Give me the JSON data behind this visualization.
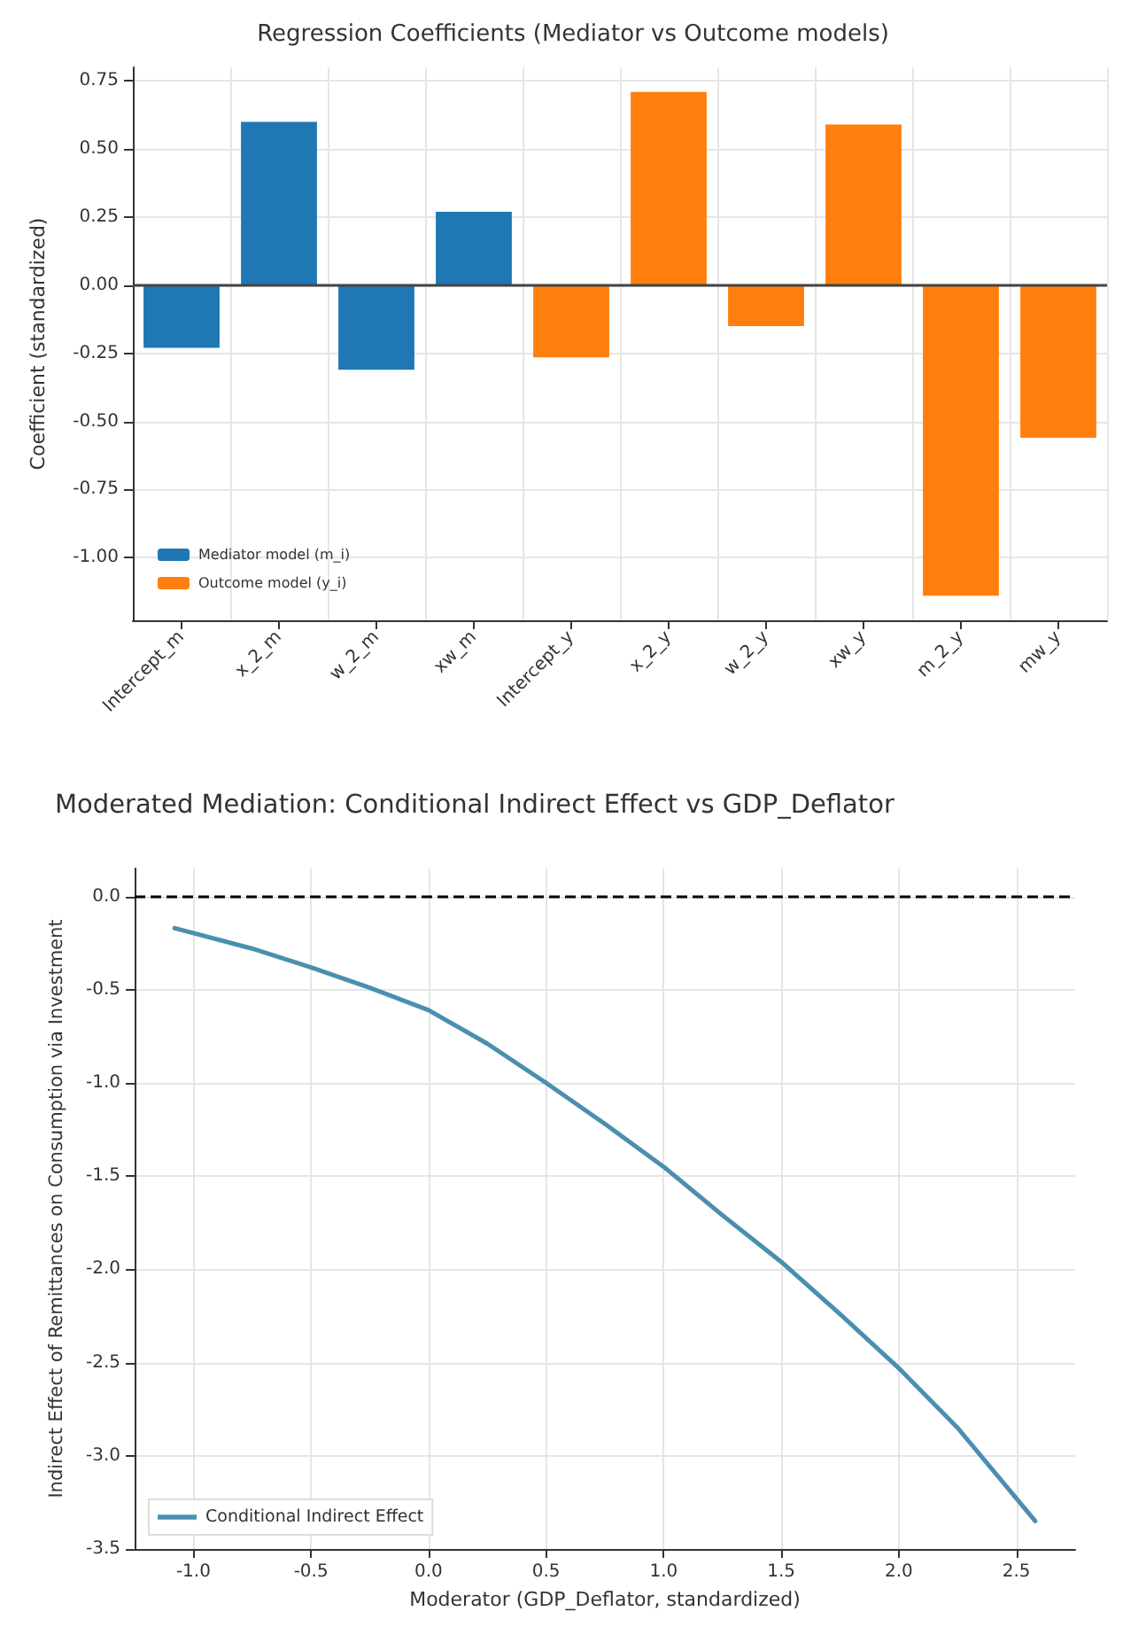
{
  "chart_data": [
    {
      "type": "bar",
      "title": "Regression Coefficients (Mediator vs Outcome models)",
      "ylabel": "Coefficient (standardized)",
      "categories": [
        "Intercept_m",
        "x_2_m",
        "w_2_m",
        "xw_m",
        "Intercept_y",
        "x_2_y",
        "w_2_y",
        "xw_y",
        "m_2_y",
        "mw_y"
      ],
      "series": [
        {
          "name": "Mediator model (m_i)",
          "color": "#1f77b4",
          "values": [
            -0.23,
            0.6,
            -0.31,
            0.27,
            null,
            null,
            null,
            null,
            null,
            null
          ]
        },
        {
          "name": "Outcome model (y_i)",
          "color": "#ff7f0e",
          "values": [
            null,
            null,
            null,
            null,
            -0.265,
            0.71,
            -0.15,
            0.59,
            -1.14,
            -0.56
          ]
        }
      ],
      "ylim": [
        -1.23,
        0.8
      ],
      "yticks": [
        {
          "value": -1,
          "label": "-1.00"
        },
        -0.75,
        {
          "value": -0.5,
          "label": "-0.50"
        },
        -0.25,
        {
          "value": 0,
          "label": "0.00"
        },
        0.25,
        {
          "value": 0.5,
          "label": "0.50"
        },
        0.75
      ],
      "ref_lines": [
        {
          "axis": "y",
          "value": 0,
          "color": "#444444",
          "line_style": "solid"
        }
      ],
      "grid": true,
      "legend": "bottom left"
    },
    {
      "type": "line",
      "title": "Moderated Mediation: Conditional Indirect Effect vs GDP_Deflator",
      "xlabel": "Moderator (GDP_Deflator, standardized)",
      "ylabel": "Indirect Effect of Remittances on Consumption via Investment",
      "x": [
        -1.08,
        -0.75,
        -0.5,
        -0.25,
        0,
        0.25,
        0.5,
        0.75,
        1.0,
        1.25,
        1.5,
        1.75,
        2.0,
        2.25,
        2.58
      ],
      "series": [
        {
          "name": "Conditional Indirect Effect",
          "color": "#4a8fb0",
          "values": [
            -0.17,
            -0.28,
            -0.38,
            -0.49,
            -0.61,
            -0.79,
            -1.0,
            -1.22,
            -1.45,
            -1.71,
            -1.96,
            -2.24,
            -2.53,
            -2.85,
            -3.35
          ]
        }
      ],
      "xlim": [
        -1.25,
        2.75
      ],
      "xticks": [
        {
          "value": -1,
          "label": "-1.0"
        },
        -0.5,
        {
          "value": 0,
          "label": "0.0"
        },
        0.5,
        {
          "value": 1,
          "label": "1.0"
        },
        1.5,
        {
          "value": 2,
          "label": "2.0"
        },
        2.5
      ],
      "ylim": [
        -3.5,
        0.15
      ],
      "yticks": [
        -3.5,
        {
          "value": -3,
          "label": "-3.0"
        },
        -2.5,
        {
          "value": -2,
          "label": "-2.0"
        },
        -1.5,
        {
          "value": -1,
          "label": "-1.0"
        },
        -0.5,
        {
          "value": 0,
          "label": "0.0"
        }
      ],
      "ref_lines": [
        {
          "axis": "y",
          "value": 0,
          "color": "#000000",
          "line_style": "dashed"
        }
      ],
      "grid": true,
      "legend": "bottom left",
      "marker": "none",
      "line_style": "solid"
    }
  ]
}
